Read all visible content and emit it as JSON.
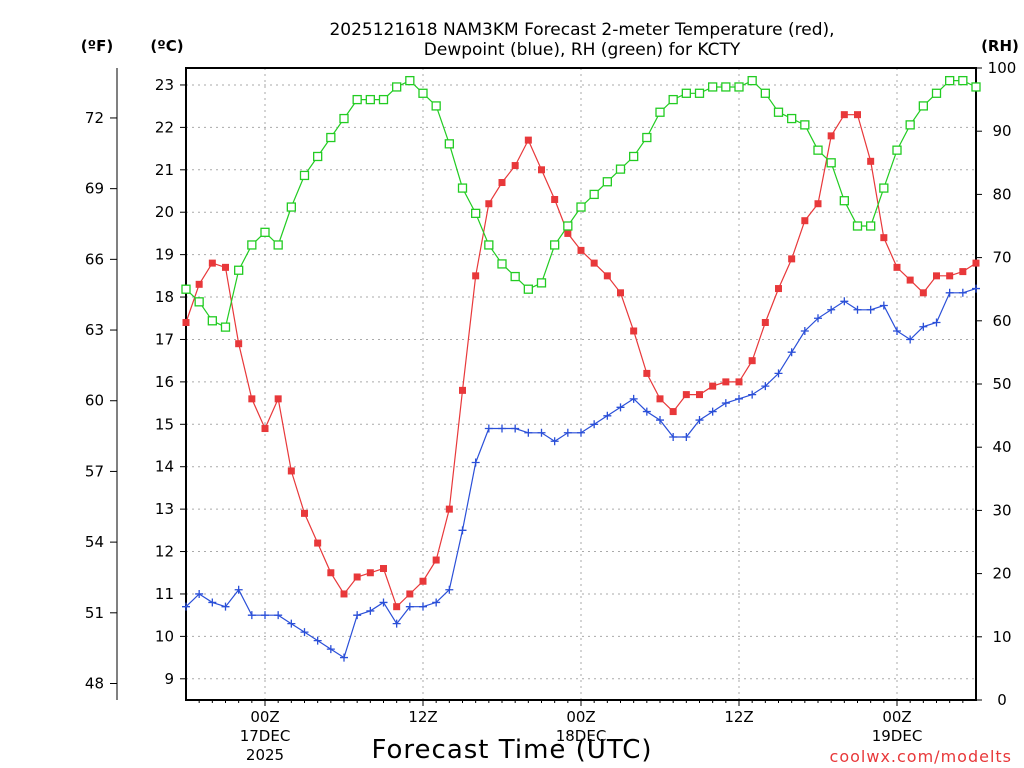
{
  "chart_data": {
    "type": "line",
    "title_line1": "2025121618 NAM3KM Forecast 2-meter Temperature (red),",
    "title_line2": "Dewpoint (blue), RH (green) for KCTY",
    "unit_f": "(ºF)",
    "unit_c": "(ºC)",
    "unit_rh": "(RH)",
    "xlabel": "Forecast Time (UTC)",
    "credit": "coolwx.com/modelts",
    "ylim_c": [
      8.5,
      23.4
    ],
    "ylim_rh": [
      0,
      100
    ],
    "x_hours_range": [
      0,
      60
    ],
    "c_ticks": [
      "9",
      "10",
      "11",
      "12",
      "13",
      "14",
      "15",
      "16",
      "17",
      "18",
      "19",
      "20",
      "21",
      "22",
      "23"
    ],
    "f_ticks": [
      "48",
      "51",
      "54",
      "57",
      "60",
      "63",
      "66",
      "69",
      "72"
    ],
    "rh_ticks": [
      "0",
      "10",
      "20",
      "30",
      "40",
      "50",
      "60",
      "70",
      "80",
      "90",
      "100"
    ],
    "x_ticks": [
      {
        "hour": 6,
        "label": "00Z",
        "sub": "17DEC",
        "sub2": "2025"
      },
      {
        "hour": 18,
        "label": "12Z",
        "sub": "",
        "sub2": ""
      },
      {
        "hour": 30,
        "label": "00Z",
        "sub": "18DEC",
        "sub2": ""
      },
      {
        "hour": 42,
        "label": "12Z",
        "sub": "",
        "sub2": ""
      },
      {
        "hour": 54,
        "label": "00Z",
        "sub": "19DEC",
        "sub2": ""
      }
    ],
    "series": [
      {
        "name": "Temperature",
        "unit": "C",
        "color": "#e8383a",
        "marker": "filled-square",
        "values": [
          17.4,
          18.3,
          18.8,
          18.7,
          16.9,
          15.6,
          14.9,
          15.6,
          13.9,
          12.9,
          12.2,
          11.5,
          11.0,
          11.4,
          11.5,
          11.6,
          10.7,
          11.0,
          11.3,
          11.8,
          13.0,
          15.8,
          18.5,
          20.2,
          20.7,
          21.1,
          21.7,
          21.0,
          20.3,
          19.5,
          19.1,
          18.8,
          18.5,
          18.1,
          17.2,
          16.2,
          15.6,
          15.3,
          15.7,
          15.7,
          15.9,
          16.0,
          16.0,
          16.5,
          17.4,
          18.2,
          18.9,
          19.8,
          20.2,
          21.8,
          22.3,
          22.3,
          21.2,
          19.4,
          18.7,
          18.4,
          18.1,
          18.5,
          18.5,
          18.6,
          18.8
        ]
      },
      {
        "name": "Dewpoint",
        "unit": "C",
        "color": "#2a4fd8",
        "marker": "plus",
        "values": [
          10.7,
          11.0,
          10.8,
          10.7,
          11.1,
          10.5,
          10.5,
          10.5,
          10.3,
          10.1,
          9.9,
          9.7,
          9.5,
          10.5,
          10.6,
          10.8,
          10.3,
          10.7,
          10.7,
          10.8,
          11.1,
          12.5,
          14.1,
          14.9,
          14.9,
          14.9,
          14.8,
          14.8,
          14.6,
          14.8,
          14.8,
          15.0,
          15.2,
          15.4,
          15.6,
          15.3,
          15.1,
          14.7,
          14.7,
          15.1,
          15.3,
          15.5,
          15.6,
          15.7,
          15.9,
          16.2,
          16.7,
          17.2,
          17.5,
          17.7,
          17.9,
          17.7,
          17.7,
          17.8,
          17.2,
          17.0,
          17.3,
          17.4,
          18.1,
          18.1,
          18.2
        ]
      },
      {
        "name": "RH",
        "unit": "%",
        "color": "#22cc22",
        "marker": "open-square",
        "values": [
          65,
          63,
          60,
          59,
          68,
          72,
          74,
          72,
          78,
          83,
          86,
          89,
          92,
          95,
          95,
          95,
          97,
          98,
          96,
          94,
          88,
          81,
          77,
          72,
          69,
          67,
          65,
          66,
          72,
          75,
          78,
          80,
          82,
          84,
          86,
          89,
          93,
          95,
          96,
          96,
          97,
          97,
          97,
          98,
          96,
          93,
          92,
          91,
          87,
          85,
          79,
          75,
          75,
          81,
          87,
          91,
          94,
          96,
          98,
          98,
          97
        ]
      }
    ]
  }
}
